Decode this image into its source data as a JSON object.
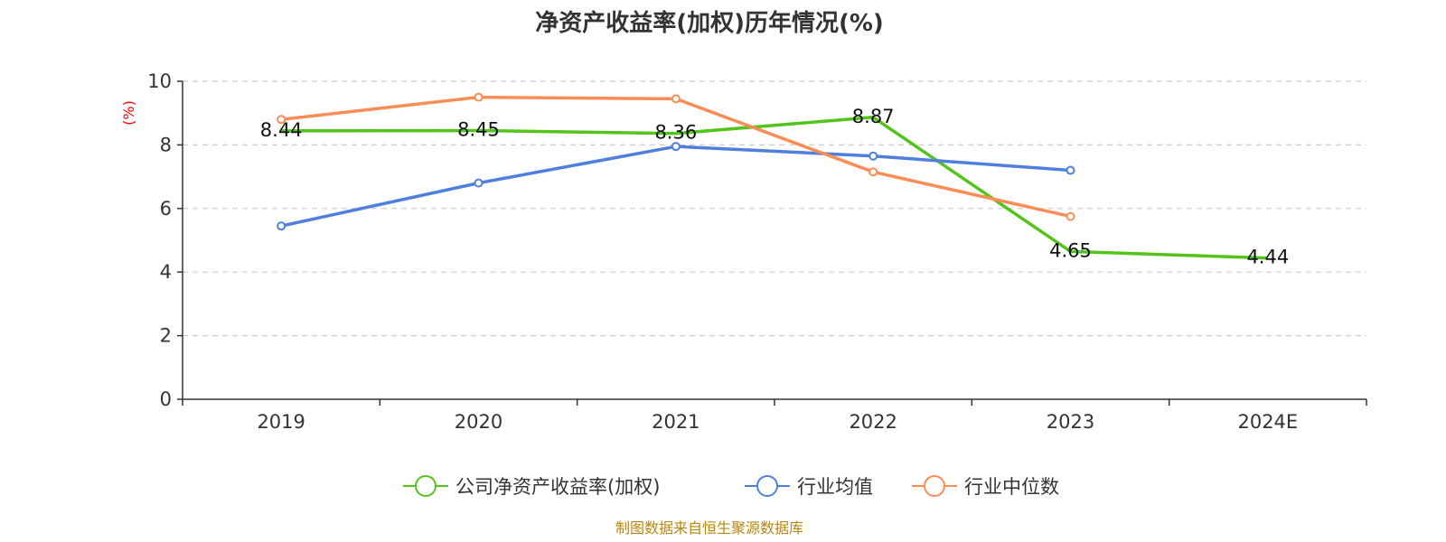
{
  "chart_data": {
    "type": "line",
    "title": "净资产收益率(加权)历年情况(%)",
    "ylabel": "(%)",
    "ylim": [
      0,
      10
    ],
    "yticks": [
      0,
      2,
      4,
      6,
      8,
      10
    ],
    "grid": true,
    "categories": [
      "2019",
      "2020",
      "2021",
      "2022",
      "2023",
      "2024E"
    ],
    "series": [
      {
        "name": "公司净资产收益率(加权)",
        "color": "#52c41a",
        "values": [
          8.44,
          8.45,
          8.36,
          8.87,
          4.65,
          4.44
        ],
        "show_labels": true,
        "show_markers": false
      },
      {
        "name": "行业均值",
        "color": "#4e7fdc",
        "values": [
          5.45,
          6.8,
          7.95,
          7.65,
          7.2,
          null
        ],
        "show_labels": false,
        "show_markers": true
      },
      {
        "name": "行业中位数",
        "color": "#fa8c55",
        "values": [
          8.8,
          9.5,
          9.45,
          7.15,
          5.75,
          null
        ],
        "show_labels": false,
        "show_markers": true
      }
    ],
    "legend_position": "bottom-center"
  },
  "colors": {
    "axis": "#333333",
    "grid": "#cccccc",
    "unit": "#ff0000",
    "source": "#b8860b"
  },
  "source": "制图数据来自恒生聚源数据库"
}
